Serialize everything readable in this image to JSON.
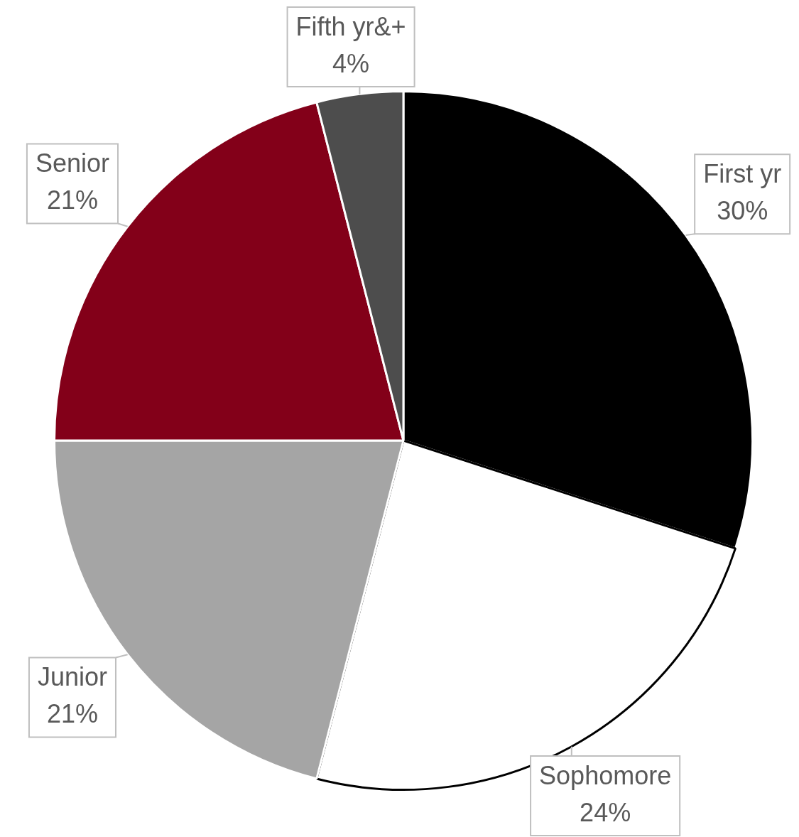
{
  "chart_data": {
    "type": "pie",
    "categories": [
      "First yr",
      "Sophomore",
      "Junior",
      "Senior",
      "Fifth yr&+"
    ],
    "values": [
      30,
      24,
      21,
      21,
      4
    ],
    "value_labels": [
      "30%",
      "24%",
      "21%",
      "21%",
      "4%"
    ],
    "colors": [
      "#000000",
      "#ffffff",
      "#a5a5a5",
      "#830019",
      "#4d4d4d"
    ],
    "legend": false
  }
}
